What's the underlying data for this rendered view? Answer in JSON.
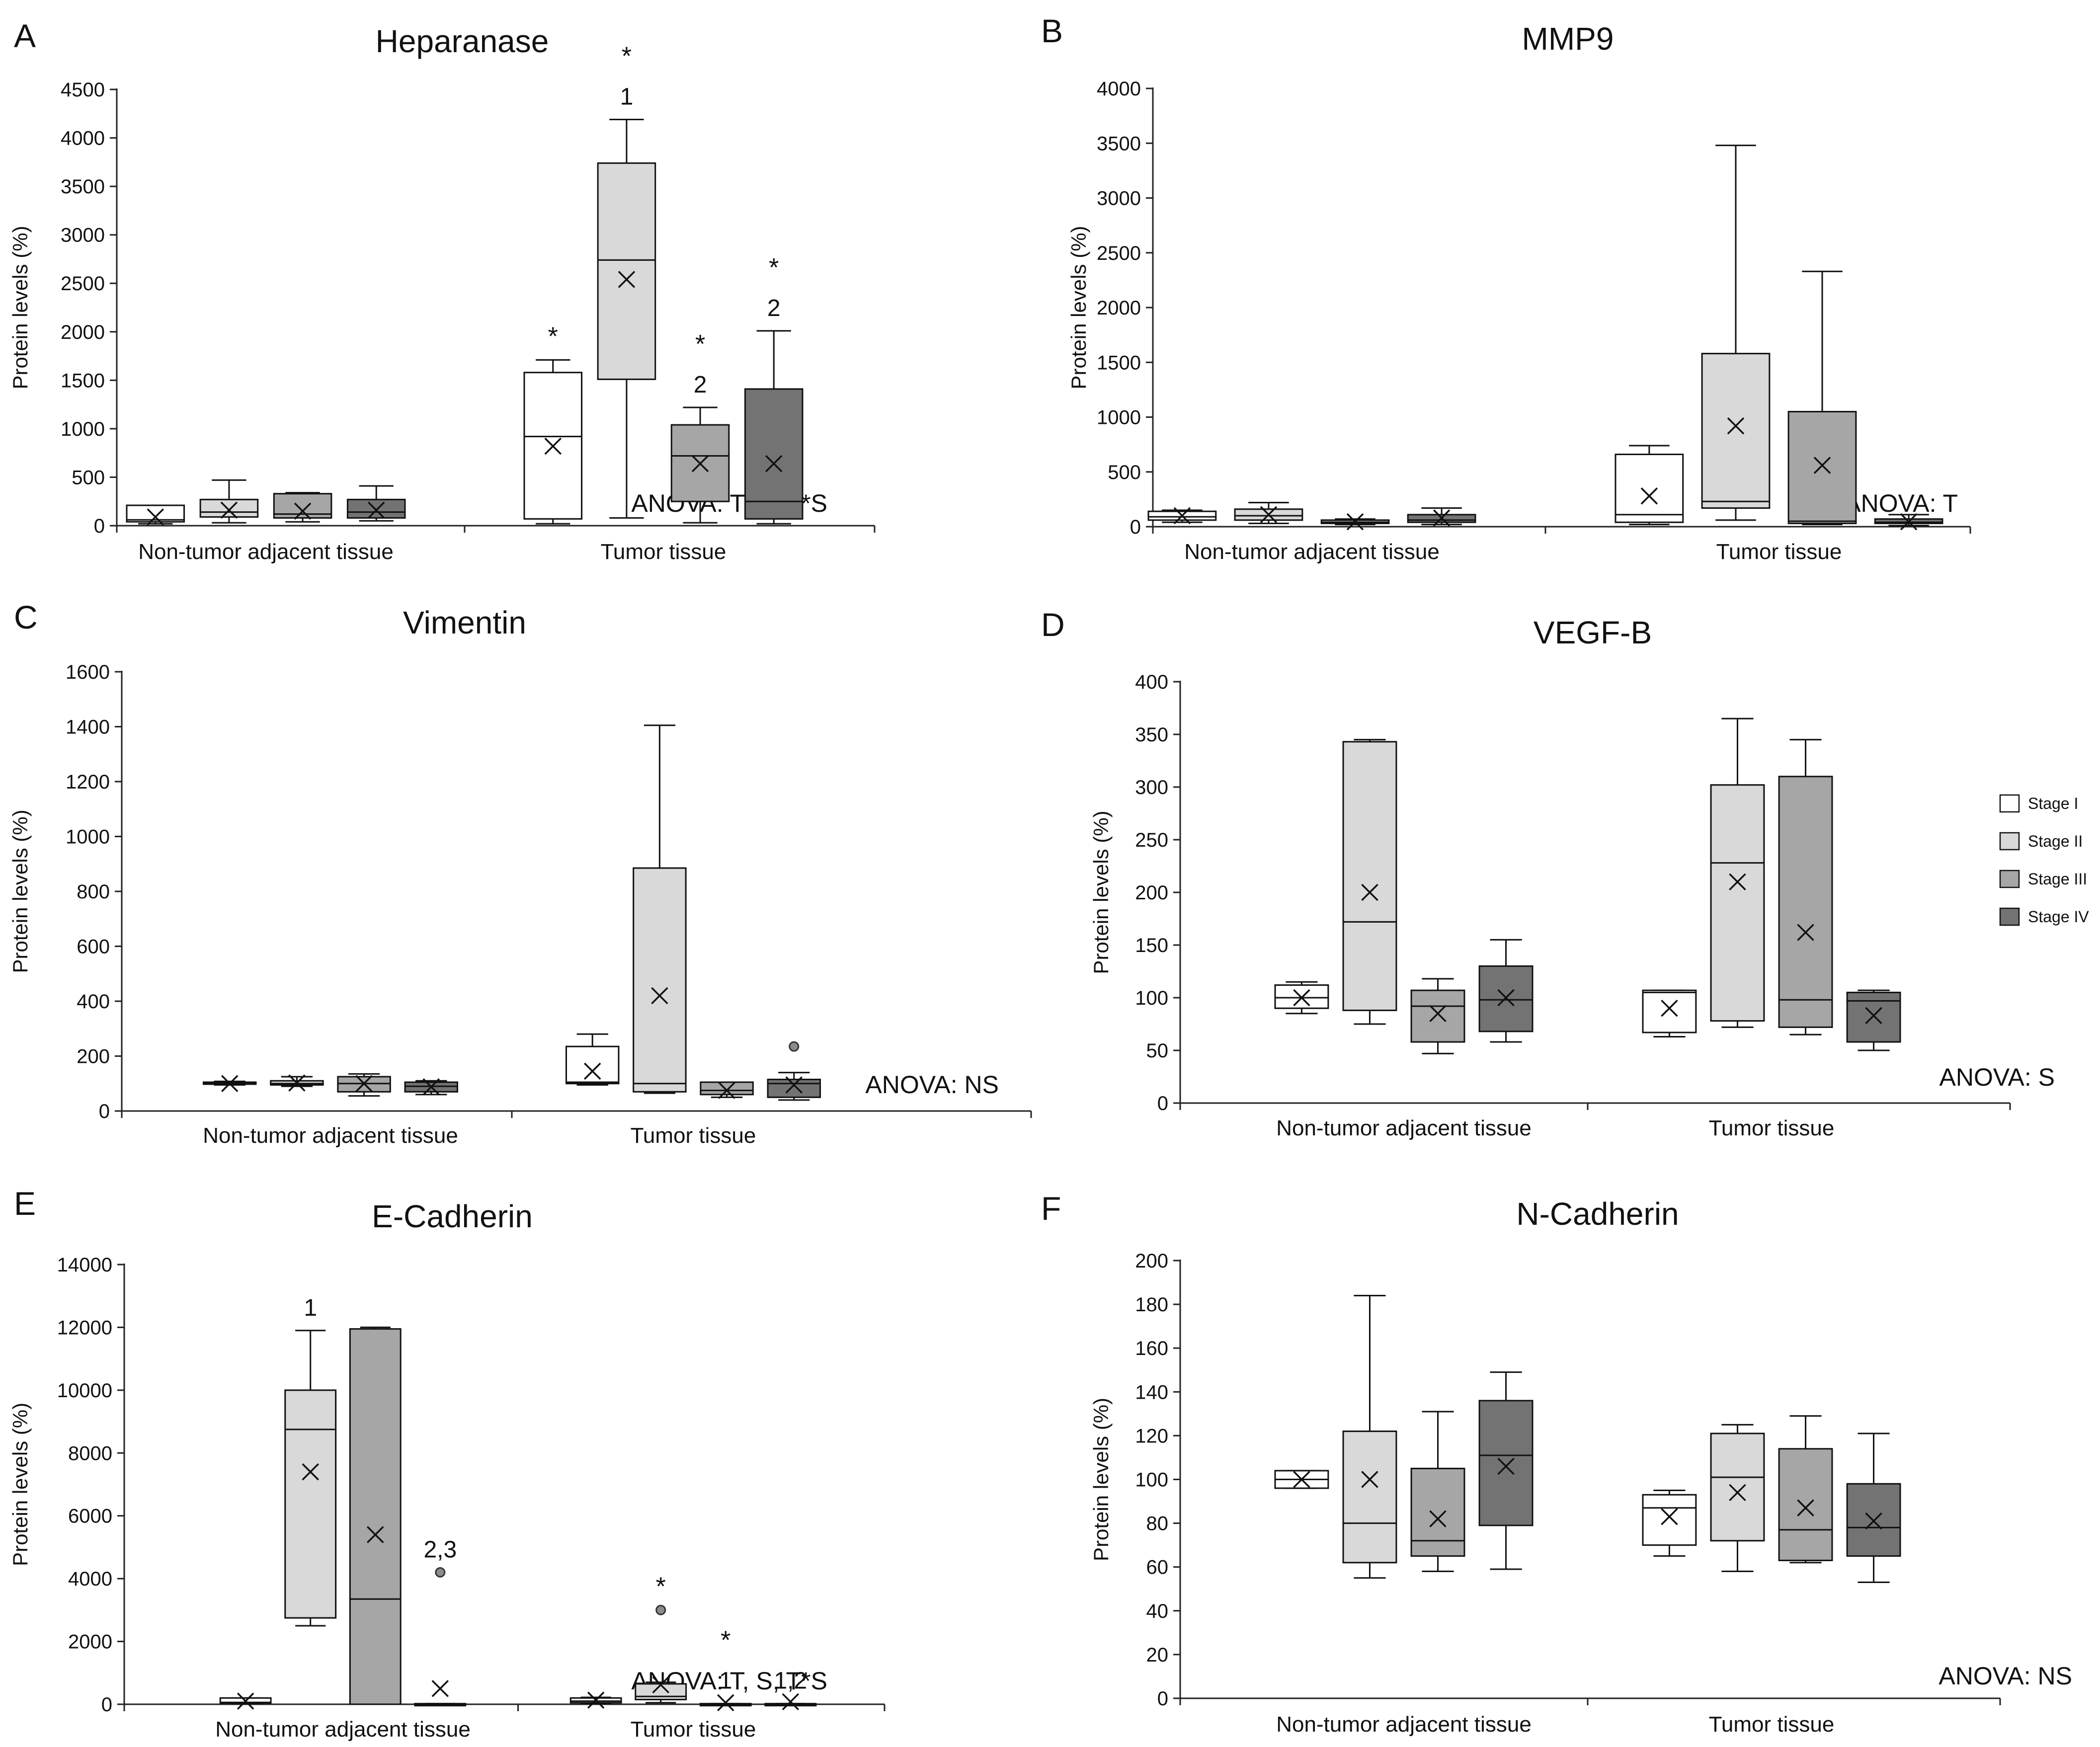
{
  "figure": {
    "category_labels": [
      "Non-tumor adjacent tissue",
      "Tumor tissue"
    ],
    "y_axis_label": "Protein levels (%)"
  },
  "legend": {
    "items": [
      {
        "label": "Stage I",
        "color": "#ffffff"
      },
      {
        "label": "Stage II",
        "color": "#d9d9d9"
      },
      {
        "label": "Stage III",
        "color": "#a6a6a6"
      },
      {
        "label": "Stage IV",
        "color": "#737373"
      }
    ]
  },
  "chart_data": [
    {
      "type": "boxplot",
      "letter": "A",
      "title": "Heparanase",
      "ylabel": "Protein levels (%)",
      "ylim": [
        0,
        4500
      ],
      "yticks": [
        0,
        500,
        1000,
        1500,
        2000,
        2500,
        3000,
        3500,
        4000,
        4500
      ],
      "categories": [
        "Non-tumor adjacent tissue",
        "Tumor tissue"
      ],
      "anova": "ANOVA: T, S, T*S",
      "boxes": [
        {
          "group": 0,
          "stage": 0,
          "min": 20,
          "q1": 40,
          "median": 60,
          "q3": 210,
          "max": 210,
          "mean": 90
        },
        {
          "group": 0,
          "stage": 1,
          "min": 30,
          "q1": 90,
          "median": 140,
          "q3": 270,
          "max": 470,
          "mean": 160
        },
        {
          "group": 0,
          "stage": 2,
          "min": 40,
          "q1": 80,
          "median": 120,
          "q3": 330,
          "max": 340,
          "mean": 150
        },
        {
          "group": 0,
          "stage": 3,
          "min": 50,
          "q1": 80,
          "median": 140,
          "q3": 270,
          "max": 410,
          "mean": 160
        },
        {
          "group": 1,
          "stage": 0,
          "min": 20,
          "q1": 70,
          "median": 920,
          "q3": 1580,
          "max": 1710,
          "mean": 820,
          "ann": [
            "*"
          ]
        },
        {
          "group": 1,
          "stage": 1,
          "min": 80,
          "q1": 1510,
          "median": 2740,
          "q3": 3740,
          "max": 4190,
          "mean": 2540,
          "ann": [
            "1",
            "*"
          ]
        },
        {
          "group": 1,
          "stage": 2,
          "min": 30,
          "q1": 250,
          "median": 720,
          "q3": 1040,
          "max": 1220,
          "mean": 640,
          "ann": [
            "2",
            "*"
          ]
        },
        {
          "group": 1,
          "stage": 3,
          "min": 20,
          "q1": 70,
          "median": 250,
          "q3": 1410,
          "max": 2010,
          "mean": 640,
          "ann": [
            "2",
            "*"
          ]
        }
      ]
    },
    {
      "type": "boxplot",
      "letter": "B",
      "title": "MMP9",
      "ylabel": "Protein levels (%)",
      "ylim": [
        0,
        4000
      ],
      "yticks": [
        0,
        500,
        1000,
        1500,
        2000,
        2500,
        3000,
        3500,
        4000
      ],
      "categories": [
        "Non-tumor adjacent tissue",
        "Tumor tissue"
      ],
      "anova": "ANOVA: T",
      "boxes": [
        {
          "group": 0,
          "stage": 0,
          "min": 40,
          "q1": 60,
          "median": 90,
          "q3": 140,
          "max": 150,
          "mean": 100
        },
        {
          "group": 0,
          "stage": 1,
          "min": 30,
          "q1": 60,
          "median": 100,
          "q3": 160,
          "max": 220,
          "mean": 110
        },
        {
          "group": 0,
          "stage": 2,
          "min": 20,
          "q1": 30,
          "median": 40,
          "q3": 60,
          "max": 70,
          "mean": 45
        },
        {
          "group": 0,
          "stage": 3,
          "min": 20,
          "q1": 40,
          "median": 60,
          "q3": 110,
          "max": 170,
          "mean": 80
        },
        {
          "group": 1,
          "stage": 0,
          "min": 20,
          "q1": 40,
          "median": 110,
          "q3": 660,
          "max": 740,
          "mean": 280
        },
        {
          "group": 1,
          "stage": 1,
          "min": 60,
          "q1": 170,
          "median": 230,
          "q3": 1580,
          "max": 3480,
          "mean": 920
        },
        {
          "group": 1,
          "stage": 2,
          "min": 20,
          "q1": 30,
          "median": 50,
          "q3": 1050,
          "max": 2330,
          "mean": 560
        },
        {
          "group": 1,
          "stage": 3,
          "min": 10,
          "q1": 30,
          "median": 40,
          "q3": 70,
          "max": 110,
          "mean": 45
        }
      ]
    },
    {
      "type": "boxplot",
      "letter": "C",
      "title": "Vimentin",
      "ylabel": "Protein levels (%)",
      "ylim": [
        0,
        1600
      ],
      "yticks": [
        0,
        200,
        400,
        600,
        800,
        1000,
        1200,
        1400,
        1600
      ],
      "categories": [
        "Non-tumor adjacent tissue",
        "Tumor tissue"
      ],
      "anova": "ANOVA: NS",
      "boxes": [
        {
          "group": 0,
          "stage": 0,
          "min": 95,
          "q1": 98,
          "median": 100,
          "q3": 105,
          "max": 108,
          "mean": 100
        },
        {
          "group": 0,
          "stage": 1,
          "min": 90,
          "q1": 95,
          "median": 100,
          "q3": 110,
          "max": 125,
          "mean": 102
        },
        {
          "group": 0,
          "stage": 2,
          "min": 55,
          "q1": 70,
          "median": 100,
          "q3": 125,
          "max": 135,
          "mean": 100
        },
        {
          "group": 0,
          "stage": 3,
          "min": 60,
          "q1": 70,
          "median": 90,
          "q3": 105,
          "max": 110,
          "mean": 88
        },
        {
          "group": 1,
          "stage": 0,
          "min": 95,
          "q1": 100,
          "median": 105,
          "q3": 235,
          "max": 280,
          "mean": 145
        },
        {
          "group": 1,
          "stage": 1,
          "min": 65,
          "q1": 70,
          "median": 100,
          "q3": 885,
          "max": 1405,
          "mean": 420
        },
        {
          "group": 1,
          "stage": 2,
          "min": 50,
          "q1": 60,
          "median": 75,
          "q3": 105,
          "max": 105,
          "mean": 75
        },
        {
          "group": 1,
          "stage": 3,
          "min": 40,
          "q1": 50,
          "median": 100,
          "q3": 115,
          "max": 140,
          "mean": 95,
          "outliers": [
            235
          ]
        }
      ]
    },
    {
      "type": "boxplot",
      "letter": "D",
      "title": "VEGF-B",
      "ylabel": "Protein levels (%)",
      "ylim": [
        0,
        400
      ],
      "yticks": [
        0,
        50,
        100,
        150,
        200,
        250,
        300,
        350,
        400
      ],
      "categories": [
        "Non-tumor adjacent tissue",
        "Tumor tissue"
      ],
      "anova": "ANOVA: S",
      "legend": true,
      "boxes": [
        {
          "group": 0,
          "stage": 0,
          "min": 85,
          "q1": 90,
          "median": 100,
          "q3": 112,
          "max": 115,
          "mean": 100
        },
        {
          "group": 0,
          "stage": 1,
          "min": 75,
          "q1": 88,
          "median": 172,
          "q3": 343,
          "max": 345,
          "mean": 200
        },
        {
          "group": 0,
          "stage": 2,
          "min": 47,
          "q1": 58,
          "median": 92,
          "q3": 107,
          "max": 118,
          "mean": 85
        },
        {
          "group": 0,
          "stage": 3,
          "min": 58,
          "q1": 68,
          "median": 98,
          "q3": 130,
          "max": 155,
          "mean": 100
        },
        {
          "group": 1,
          "stage": 0,
          "min": 63,
          "q1": 67,
          "median": 105,
          "q3": 107,
          "max": 107,
          "mean": 90
        },
        {
          "group": 1,
          "stage": 1,
          "min": 72,
          "q1": 78,
          "median": 228,
          "q3": 302,
          "max": 365,
          "mean": 210
        },
        {
          "group": 1,
          "stage": 2,
          "min": 65,
          "q1": 72,
          "median": 98,
          "q3": 310,
          "max": 345,
          "mean": 162
        },
        {
          "group": 1,
          "stage": 3,
          "min": 50,
          "q1": 58,
          "median": 97,
          "q3": 105,
          "max": 107,
          "mean": 83
        }
      ]
    },
    {
      "type": "boxplot",
      "letter": "E",
      "title": "E-Cadherin",
      "ylabel": "Protein levels (%)",
      "ylim": [
        0,
        14000
      ],
      "yticks": [
        0,
        2000,
        4000,
        6000,
        8000,
        10000,
        12000,
        14000
      ],
      "categories": [
        "Non-tumor adjacent tissue",
        "Tumor tissue"
      ],
      "anova": "ANOVA: T, S, T*S",
      "boxes": [
        {
          "group": 0,
          "stage": 0,
          "min": 20,
          "q1": 40,
          "median": 60,
          "q3": 200,
          "max": 200,
          "mean": 100
        },
        {
          "group": 0,
          "stage": 1,
          "min": 2500,
          "q1": 2750,
          "median": 8750,
          "q3": 10000,
          "max": 11900,
          "mean": 7400,
          "ann": [
            "1"
          ]
        },
        {
          "group": 0,
          "stage": 2,
          "min": 0,
          "q1": 0,
          "median": 3350,
          "q3": 11950,
          "max": 12000,
          "mean": 5400
        },
        {
          "group": 0,
          "stage": 3,
          "min": 0,
          "q1": 0,
          "median": 0,
          "q3": 20,
          "max": 20,
          "mean": 500,
          "outliers": [
            4200
          ],
          "ann": [
            "2,3"
          ]
        },
        {
          "group": 1,
          "stage": 0,
          "min": 20,
          "q1": 50,
          "median": 100,
          "q3": 200,
          "max": 220,
          "mean": 130
        },
        {
          "group": 1,
          "stage": 1,
          "min": 50,
          "q1": 150,
          "median": 250,
          "q3": 650,
          "max": 700,
          "mean": 620,
          "outliers": [
            3000
          ],
          "ann": [
            "*"
          ]
        },
        {
          "group": 1,
          "stage": 2,
          "min": 0,
          "q1": 0,
          "median": 0,
          "q3": 20,
          "max": 20,
          "mean": 50,
          "ann": [
            "1",
            "*"
          ]
        },
        {
          "group": 1,
          "stage": 3,
          "min": 0,
          "q1": 0,
          "median": 0,
          "q3": 20,
          "max": 20,
          "mean": 80,
          "ann": [
            "1,2"
          ]
        }
      ]
    },
    {
      "type": "boxplot",
      "letter": "F",
      "title": "N-Cadherin",
      "ylabel": "Protein levels (%)",
      "ylim": [
        0,
        200
      ],
      "yticks": [
        0,
        20,
        40,
        60,
        80,
        100,
        120,
        140,
        160,
        180,
        200
      ],
      "categories": [
        "Non-tumor adjacent tissue",
        "Tumor tissue"
      ],
      "anova": "ANOVA: NS",
      "boxes": [
        {
          "group": 0,
          "stage": 0,
          "min": 96,
          "q1": 96,
          "median": 100,
          "q3": 104,
          "max": 104,
          "mean": 100
        },
        {
          "group": 0,
          "stage": 1,
          "min": 55,
          "q1": 62,
          "median": 80,
          "q3": 122,
          "max": 184,
          "mean": 100
        },
        {
          "group": 0,
          "stage": 2,
          "min": 58,
          "q1": 65,
          "median": 72,
          "q3": 105,
          "max": 131,
          "mean": 82
        },
        {
          "group": 0,
          "stage": 3,
          "min": 59,
          "q1": 79,
          "median": 111,
          "q3": 136,
          "max": 149,
          "mean": 106
        },
        {
          "group": 1,
          "stage": 0,
          "min": 65,
          "q1": 70,
          "median": 87,
          "q3": 93,
          "max": 95,
          "mean": 83
        },
        {
          "group": 1,
          "stage": 1,
          "min": 58,
          "q1": 72,
          "median": 101,
          "q3": 121,
          "max": 125,
          "mean": 94
        },
        {
          "group": 1,
          "stage": 2,
          "min": 62,
          "q1": 63,
          "median": 77,
          "q3": 114,
          "max": 129,
          "mean": 87
        },
        {
          "group": 1,
          "stage": 3,
          "min": 53,
          "q1": 65,
          "median": 78,
          "q3": 98,
          "max": 121,
          "mean": 81
        }
      ]
    }
  ]
}
